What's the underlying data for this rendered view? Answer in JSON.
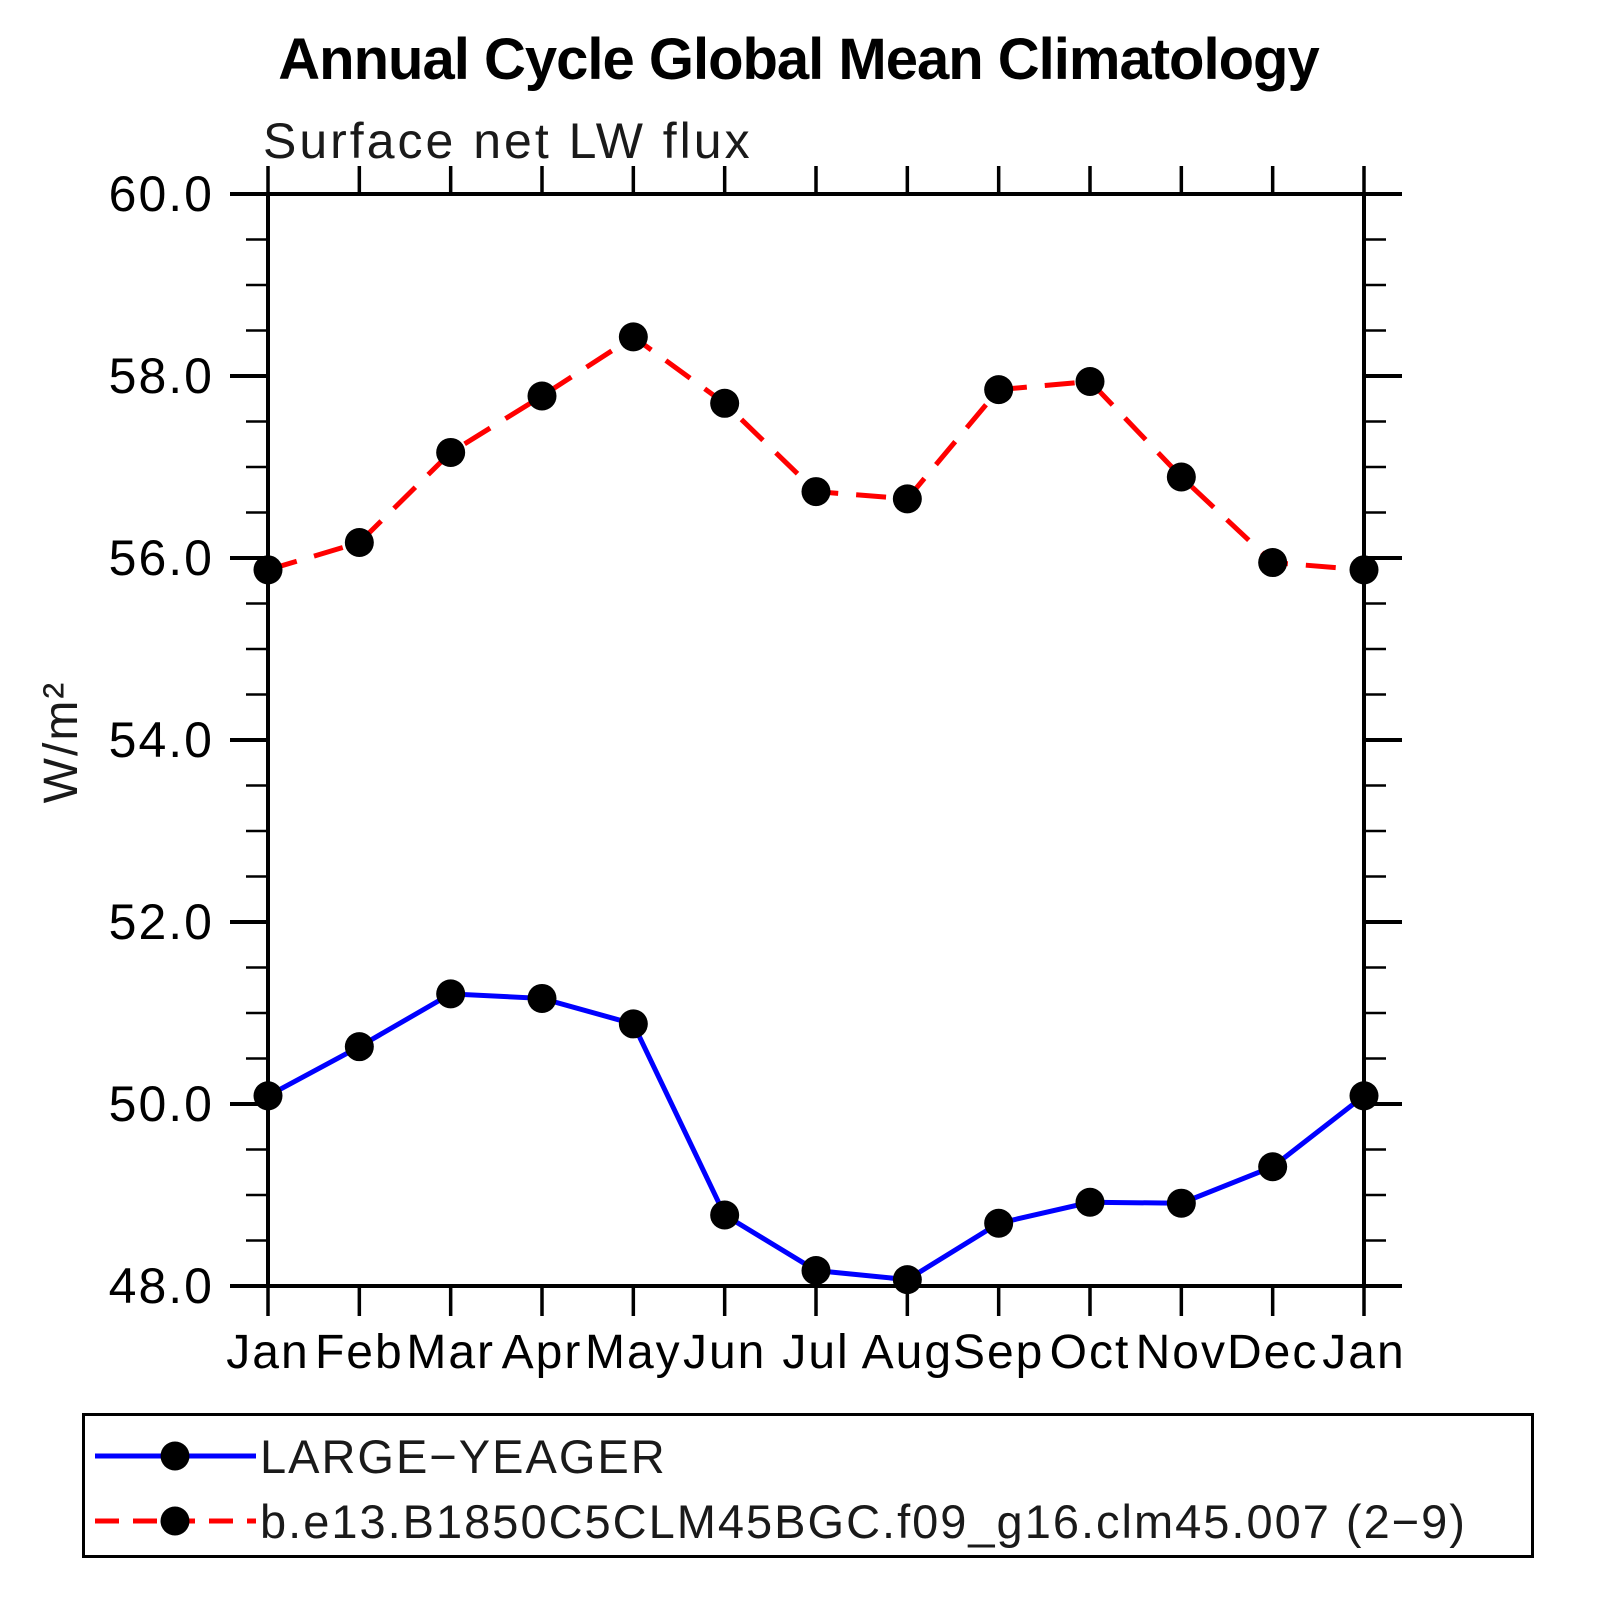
{
  "page": {
    "background": "#ffffff"
  },
  "chart_data": {
    "type": "line",
    "title": "Annual Cycle Global Mean Climatology",
    "subtitle": "Surface net LW flux",
    "ylabel": "W/m²",
    "xlabel": "",
    "ylim": [
      48.0,
      60.0
    ],
    "ytick_step": 2.0,
    "ytick_minor_step": 0.5,
    "ytick_labels": [
      "60.0",
      "58.0",
      "56.0",
      "54.0",
      "52.0",
      "50.0",
      "48.0"
    ],
    "categories": [
      "Jan",
      "Feb",
      "Mar",
      "Apr",
      "May",
      "Jun",
      "Jul",
      "Aug",
      "Sep",
      "Oct",
      "Nov",
      "Dec",
      "Jan"
    ],
    "grid": false,
    "legend_position": "bottom-left-box",
    "axis_color": "#000000",
    "text_color": "#000000",
    "series": [
      {
        "name": "LARGE−YEAGER",
        "color": "#0000ff",
        "line_style": "solid",
        "marker": "circle",
        "marker_color": "#000000",
        "values": [
          50.09,
          50.63,
          51.21,
          51.16,
          50.88,
          48.78,
          48.17,
          48.07,
          48.69,
          48.92,
          48.91,
          49.31,
          50.09
        ]
      },
      {
        "name": "b.e13.B1850C5CLM45BGC.f09_g16.clm45.007 (2−9)",
        "color": "#ff0000",
        "line_style": "dashed",
        "marker": "circle",
        "marker_color": "#000000",
        "values": [
          55.87,
          56.17,
          57.16,
          57.78,
          58.43,
          57.7,
          56.73,
          56.65,
          57.85,
          57.94,
          56.89,
          55.95,
          55.87
        ]
      }
    ]
  }
}
